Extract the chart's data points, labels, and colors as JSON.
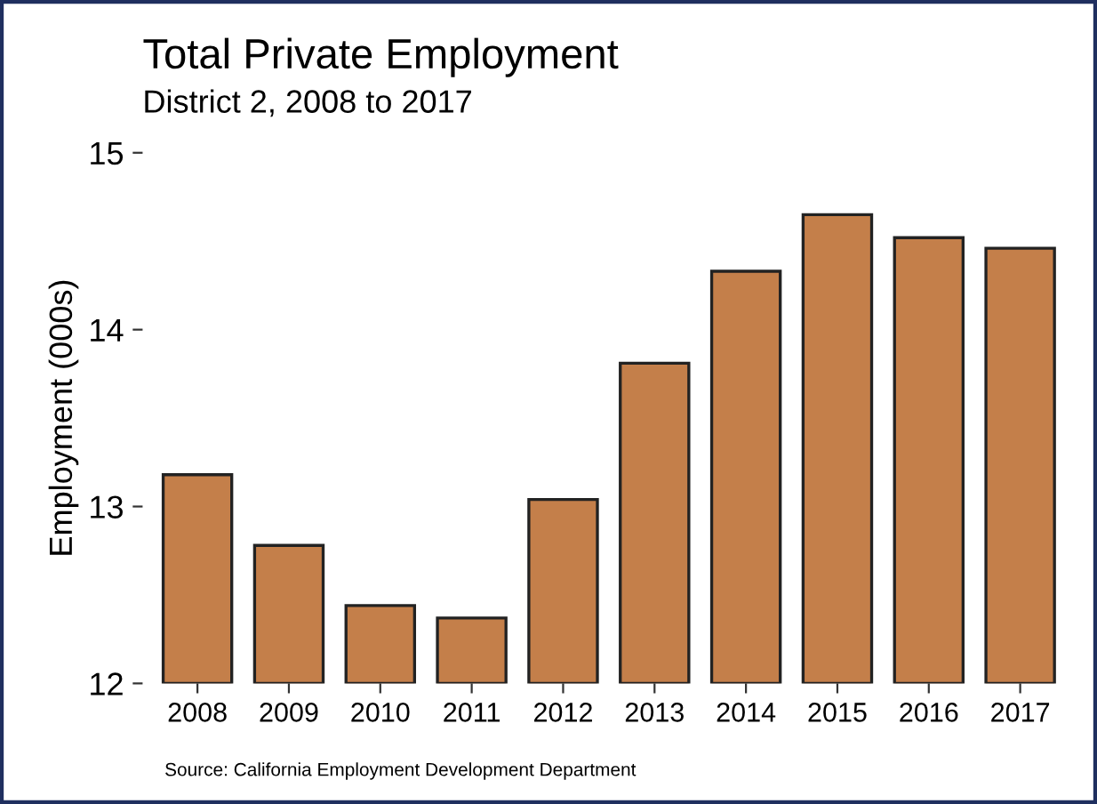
{
  "chart_data": {
    "type": "bar",
    "title": "Total Private Employment",
    "subtitle": "District 2, 2008 to 2017",
    "ylabel": "Employment (000s)",
    "categories": [
      "2008",
      "2009",
      "2010",
      "2011",
      "2012",
      "2013",
      "2014",
      "2015",
      "2016",
      "2017"
    ],
    "values": [
      13.18,
      12.78,
      12.44,
      12.37,
      13.04,
      13.81,
      14.33,
      14.65,
      14.52,
      14.46
    ],
    "color": "#c47f4a",
    "ylim": [
      12,
      15
    ],
    "yticks": [
      12,
      13,
      14,
      15
    ],
    "grid": false,
    "annotations": [
      "Source: California Employment Development Department"
    ]
  }
}
